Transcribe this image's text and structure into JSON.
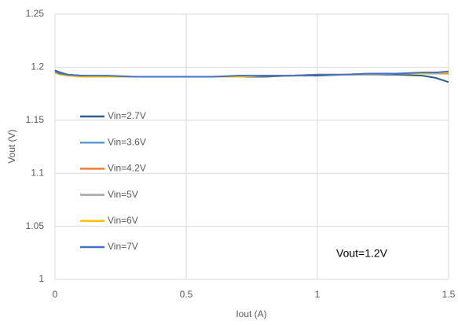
{
  "chart_data": {
    "type": "line",
    "x_label": "Iout (A)",
    "y_label": "Vout (V)",
    "annotation": "Vout=1.2V",
    "x": [
      0,
      0.02,
      0.05,
      0.1,
      0.2,
      0.3,
      0.4,
      0.5,
      0.6,
      0.7,
      0.8,
      0.9,
      1.0,
      1.1,
      1.2,
      1.3,
      1.4,
      1.45,
      1.5
    ],
    "series": [
      {
        "name": "Vin=2.7V",
        "color": "#2e5f8a",
        "values": [
          1.197,
          1.195,
          1.193,
          1.192,
          1.191,
          1.191,
          1.191,
          1.191,
          1.191,
          1.191,
          1.191,
          1.192,
          1.192,
          1.193,
          1.193,
          1.193,
          1.192,
          1.19,
          1.186
        ]
      },
      {
        "name": "Vin=3.6V",
        "color": "#5b9bd5",
        "values": [
          1.196,
          1.194,
          1.193,
          1.192,
          1.191,
          1.191,
          1.191,
          1.191,
          1.191,
          1.191,
          1.192,
          1.192,
          1.193,
          1.193,
          1.194,
          1.194,
          1.194,
          1.194,
          1.195
        ]
      },
      {
        "name": "Vin=4.2V",
        "color": "#ed7d31",
        "values": [
          1.195,
          1.193,
          1.192,
          1.192,
          1.191,
          1.191,
          1.191,
          1.191,
          1.191,
          1.191,
          1.192,
          1.192,
          1.193,
          1.193,
          1.193,
          1.194,
          1.194,
          1.194,
          1.194
        ]
      },
      {
        "name": "Vin=5V",
        "color": "#a5a5a5",
        "values": [
          1.195,
          1.193,
          1.192,
          1.192,
          1.191,
          1.191,
          1.191,
          1.191,
          1.191,
          1.191,
          1.192,
          1.192,
          1.193,
          1.193,
          1.193,
          1.194,
          1.194,
          1.194,
          1.195
        ]
      },
      {
        "name": "Vin=6V",
        "color": "#ffc000",
        "values": [
          1.195,
          1.193,
          1.192,
          1.191,
          1.191,
          1.191,
          1.191,
          1.191,
          1.191,
          1.191,
          1.192,
          1.192,
          1.193,
          1.193,
          1.194,
          1.194,
          1.194,
          1.195,
          1.195
        ]
      },
      {
        "name": "Vin=7V",
        "color": "#4472c4",
        "values": [
          1.196,
          1.194,
          1.193,
          1.192,
          1.192,
          1.191,
          1.191,
          1.191,
          1.191,
          1.192,
          1.192,
          1.192,
          1.193,
          1.193,
          1.194,
          1.194,
          1.195,
          1.195,
          1.196
        ]
      }
    ],
    "xlim": [
      0,
      1.5
    ],
    "xticks": [
      0,
      0.5,
      1,
      1.5
    ],
    "ylim": [
      1,
      1.25
    ],
    "yticks": [
      1,
      1.05,
      1.1,
      1.15,
      1.2,
      1.25
    ],
    "grid": true
  }
}
